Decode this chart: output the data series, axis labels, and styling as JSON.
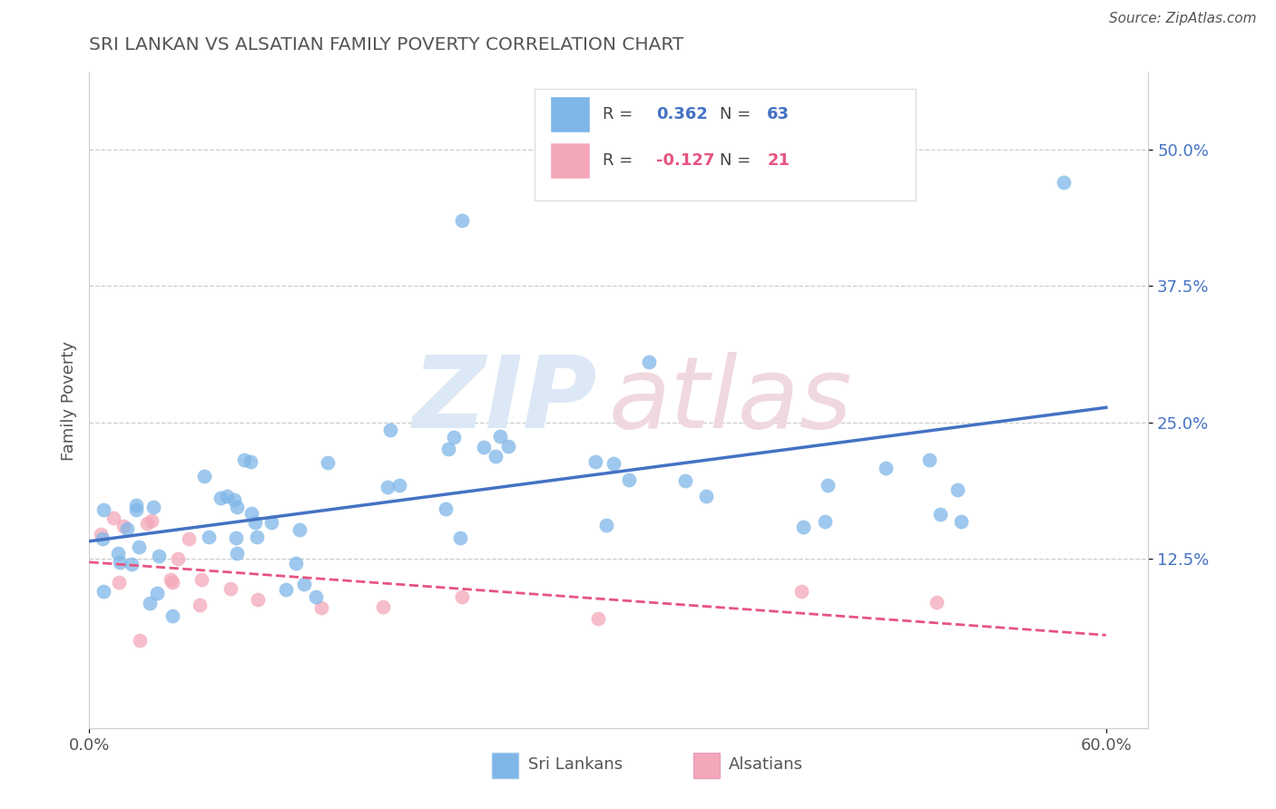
{
  "title": "SRI LANKAN VS ALSATIAN FAMILY POVERTY CORRELATION CHART",
  "source": "Source: ZipAtlas.com",
  "ylabel": "Family Poverty",
  "xlim": [
    0.0,
    0.625
  ],
  "ylim": [
    -0.03,
    0.57
  ],
  "xtick_positions": [
    0.0,
    0.6
  ],
  "xticklabels": [
    "0.0%",
    "60.0%"
  ],
  "ytick_positions": [
    0.125,
    0.25,
    0.375,
    0.5
  ],
  "ytick_labels": [
    "12.5%",
    "25.0%",
    "37.5%",
    "50.0%"
  ],
  "grid_color": "#cccccc",
  "background_color": "#ffffff",
  "sri_lankan_color": "#7eb6e8",
  "alsatian_color": "#f4a7b9",
  "sri_lankan_line_color": "#4472C4",
  "alsatian_line_color": "#E75480",
  "R_sri": 0.362,
  "N_sri": 63,
  "R_als": -0.127,
  "N_als": 21,
  "watermark_zip_color": "#dce8f5",
  "watermark_atlas_color": "#f0d8e0",
  "title_color": "#555555",
  "label_color": "#555555",
  "bottom_legend_label_sri": "Sri Lankans",
  "bottom_legend_label_als": "Alsatians"
}
